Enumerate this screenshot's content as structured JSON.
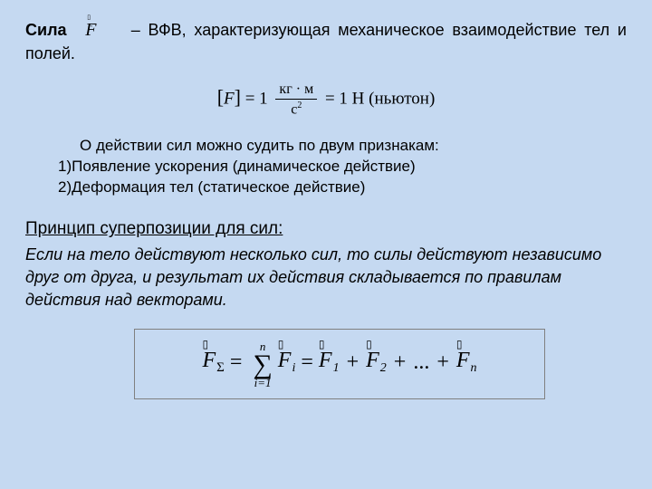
{
  "intro": {
    "boldWord": "Сила",
    "forceSymbol": "F",
    "restText": "– ВФВ, характеризующая механическое взаимодействие тел и полей."
  },
  "unitFormula": {
    "leftBracketF": "F",
    "equalsOne": "= 1",
    "fracTop": "кг · м",
    "fracBot": "с",
    "fracBotExp": "2",
    "rightPart": "= 1 Н (ньютон)"
  },
  "indicators": {
    "lead": "О действии сил можно судить по двум признакам:",
    "item1num": "1)",
    "item1": "Появление ускорения (динамическое действие)",
    "item2num": "2)",
    "item2": "Деформация тел (статическое действие)"
  },
  "superposition": {
    "title": "Принцип суперпозиции для сил:",
    "body": "Если на тело действуют несколько сил, то силы действуют независимо друг от друга, и результат их действия складывается по правилам действия над векторами."
  },
  "formulaBox": {
    "F": "F",
    "sigma": "Σ",
    "sumTop": "n",
    "sumSymbol": "∑",
    "sumBot": "i=1",
    "sub_i": "i",
    "sub_1": "1",
    "sub_2": "2",
    "sub_n": "n",
    "dots": "...",
    "vecGlyph": "▯"
  },
  "style": {
    "background": "#c5d9f1",
    "textColor": "#000000",
    "boxBorder": "#808080",
    "bodyFontSize": 18,
    "formulaFontSize": 24
  }
}
